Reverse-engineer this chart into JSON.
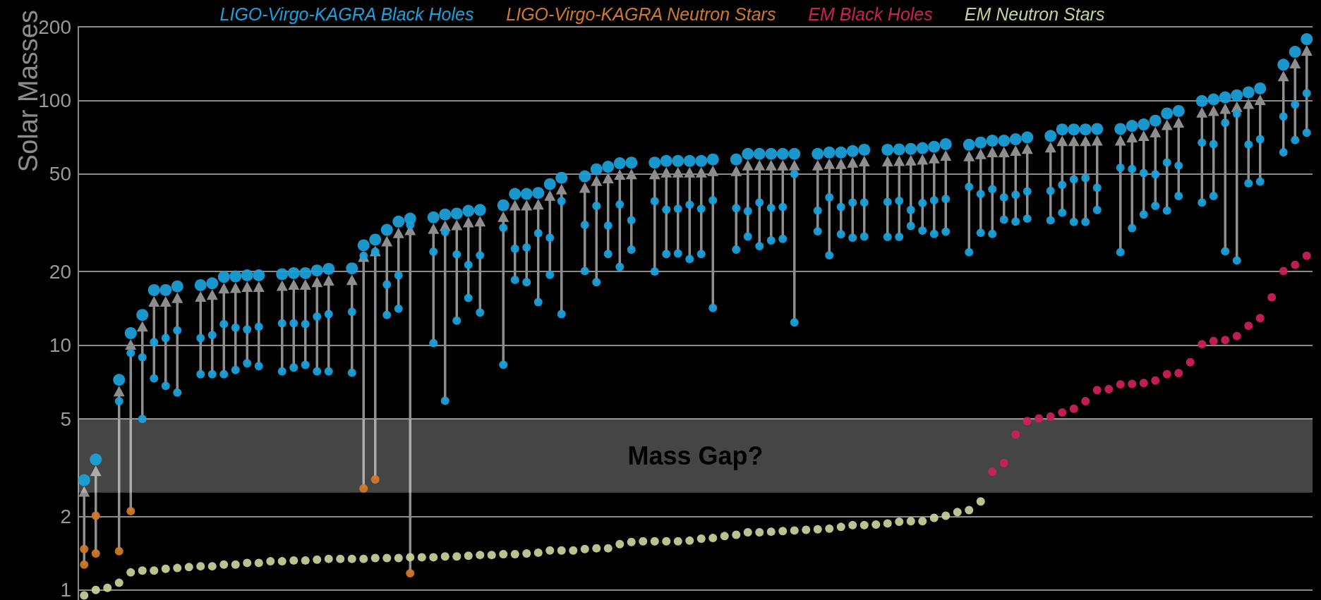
{
  "chart_data": {
    "type": "scatter",
    "ylabel": "Solar Masses",
    "log": "y",
    "ylim": [
      0.91,
      200
    ],
    "yticks": [
      1,
      2,
      5,
      10,
      20,
      50,
      100,
      200
    ],
    "grid": "y",
    "legend": "top",
    "tick_labels": "y",
    "marker": "circle",
    "categories": [
      null,
      null,
      null,
      null,
      null,
      null,
      null,
      null,
      null,
      null,
      null,
      null,
      null,
      null,
      null,
      null,
      null,
      null,
      null,
      null,
      null,
      null,
      null,
      null,
      null,
      null,
      null,
      null,
      null,
      null,
      null,
      null,
      null,
      null,
      null,
      null,
      null,
      null,
      null,
      null,
      null,
      null,
      null,
      null,
      null,
      null,
      null,
      null,
      null,
      null,
      null,
      null,
      null,
      null,
      null,
      null,
      null,
      null,
      null,
      null,
      null,
      null,
      null,
      null,
      null,
      null,
      null,
      null,
      null,
      null,
      null,
      null,
      null,
      null,
      null,
      null,
      null,
      null,
      null,
      null,
      null,
      null,
      null,
      null,
      null,
      null,
      null,
      null,
      null,
      null,
      null,
      null,
      null,
      null,
      null,
      null,
      null,
      null,
      null,
      null,
      null,
      null,
      null,
      null,
      null,
      null
    ],
    "bands": [
      {
        "axis": "y",
        "from": 2.5,
        "to": 5,
        "label": "Mass Gap?"
      }
    ],
    "series": [
      {
        "name": "LIGO-Virgo-KAGRA Black Holes",
        "color": "#1ba1db",
        "values": [
          2.81,
          3.41,
          null,
          7.22,
          11.2,
          13.3,
          16.8,
          16.8,
          17.4,
          null,
          17.6,
          17.9,
          19.0,
          19.1,
          19.3,
          19.3,
          null,
          19.5,
          19.7,
          19.7,
          20.2,
          20.5,
          null,
          20.6,
          25.6,
          27.0,
          29.6,
          32.0,
          32.9,
          null,
          33.3,
          34.2,
          34.5,
          35.4,
          35.7,
          null,
          37.3,
          41.5,
          41.5,
          41.9,
          45.5,
          48.3,
          null,
          49.0,
          52.3,
          53.6,
          55.4,
          55.7,
          null,
          55.7,
          56.6,
          56.6,
          56.6,
          56.6,
          57.4,
          null,
          57.4,
          60.5,
          60.5,
          60.5,
          60.5,
          60.5,
          null,
          60.5,
          61.3,
          61.3,
          62.1,
          62.9,
          null,
          62.9,
          63.1,
          63.4,
          63.9,
          64.7,
          66.3,
          null,
          65.9,
          67.3,
          68.5,
          68.5,
          69.4,
          70.7,
          null,
          71.6,
          76.1,
          76.1,
          76.1,
          76.5,
          null,
          76.5,
          78.7,
          79.8,
          82.7,
          88.5,
          90.6,
          null,
          99.5,
          101,
          103,
          105,
          108,
          112,
          null,
          140,
          158,
          178
        ]
      },
      {
        "color": "#1ba1db",
        "values": [
          null,
          null,
          null,
          5.91,
          9.3,
          8.92,
          10.3,
          10.7,
          11.5,
          null,
          10.7,
          11.0,
          12.2,
          11.8,
          11.6,
          11.9,
          null,
          12.3,
          12.3,
          12.2,
          13.1,
          13.4,
          null,
          13.7,
          23.2,
          24.1,
          17.7,
          19.3,
          31.0,
          null,
          24.1,
          29.0,
          23.5,
          21.3,
          23.3,
          null,
          30.2,
          24.8,
          25.1,
          28.7,
          27.5,
          38.8,
          null,
          31.0,
          37.1,
          30.8,
          37.6,
          32.4,
          null,
          38.8,
          35.8,
          36.1,
          37.5,
          36.1,
          39.1,
          null,
          36.3,
          35.3,
          38.3,
          36.4,
          36.7,
          50.1,
          null,
          35.5,
          40.2,
          36.7,
          38.3,
          38.3,
          null,
          38.5,
          38.9,
          35.7,
          38.1,
          39.1,
          39.6,
          null,
          44.4,
          41.5,
          43.4,
          40.2,
          41.2,
          42.5,
          null,
          42.7,
          45.2,
          47.6,
          48.2,
          44.0,
          null,
          53.1,
          52.5,
          50.5,
          49.9,
          55.8,
          54.2,
          null,
          67.3,
          66.3,
          81.0,
          88.3,
          66.1,
          69.4,
          null,
          86.0,
          96.2,
          107
        ]
      },
      {
        "color": "#1ba1db",
        "values": [
          null,
          null,
          null,
          null,
          null,
          5.0,
          7.32,
          6.82,
          6.41,
          null,
          7.61,
          7.61,
          7.61,
          7.92,
          8.44,
          8.22,
          null,
          7.82,
          8.11,
          8.31,
          7.82,
          7.82,
          null,
          7.72,
          null,
          null,
          13.3,
          14.1,
          null,
          null,
          10.2,
          5.93,
          12.6,
          15.6,
          13.6,
          null,
          8.32,
          18.5,
          18.1,
          15.0,
          19.4,
          13.4,
          null,
          20.1,
          18.1,
          23.6,
          20.9,
          24.6,
          null,
          20.0,
          23.6,
          23.7,
          22.5,
          23.6,
          14.2,
          null,
          24.6,
          27.8,
          25.4,
          26.8,
          27.2,
          12.4,
          null,
          29.2,
          23.3,
          28.4,
          27.5,
          27.8,
          null,
          27.7,
          27.7,
          30.7,
          29.4,
          28.5,
          29.1,
          null,
          24.0,
          28.8,
          28.5,
          32.6,
          32.0,
          32.9,
          null,
          32.4,
          34.8,
          31.9,
          31.9,
          35.7,
          null,
          24.0,
          30.1,
          34.2,
          37.1,
          35.5,
          40.7,
          null,
          38.3,
          40.7,
          24.2,
          22.2,
          45.9,
          46.6,
          null,
          61.4,
          68.9,
          73.8
        ]
      },
      {
        "name": "LIGO-Virgo-KAGRA Neutron Stars",
        "color": "#d27a2a",
        "values": [
          1.27,
          1.41,
          null,
          1.44,
          2.1,
          null,
          null,
          null,
          null,
          null,
          null,
          null,
          null,
          null,
          null,
          null,
          null,
          null,
          null,
          null,
          null,
          null,
          null,
          null,
          2.6,
          2.83,
          null,
          null,
          1.17,
          null,
          null,
          null,
          null,
          null,
          null,
          null,
          null,
          null,
          null,
          null,
          null,
          null,
          null,
          null,
          null,
          null,
          null,
          null,
          null,
          null,
          null,
          null,
          null,
          null,
          null,
          null,
          null,
          null,
          null,
          null,
          null,
          null,
          null,
          null,
          null,
          null,
          null,
          null,
          null,
          null,
          null,
          null,
          null,
          null,
          null,
          null,
          null,
          null,
          null,
          null,
          null,
          null,
          null,
          null,
          null,
          null,
          null,
          null,
          null,
          null,
          null,
          null,
          null,
          null,
          null,
          null,
          null,
          null,
          null,
          null,
          null,
          null,
          null,
          null,
          null,
          null
        ]
      },
      {
        "color": "#d27a2a",
        "values": [
          1.47,
          2.01,
          null,
          null,
          null,
          null,
          null,
          null,
          null,
          null,
          null,
          null,
          null,
          null,
          null,
          null,
          null,
          null,
          null,
          null,
          null,
          null,
          null,
          null,
          null,
          null,
          null,
          null,
          null,
          null,
          null,
          null,
          null,
          null,
          null,
          null,
          null,
          null,
          null,
          null,
          null,
          null,
          null,
          null,
          null,
          null,
          null,
          null,
          null,
          null,
          null,
          null,
          null,
          null,
          null,
          null,
          null,
          null,
          null,
          null,
          null,
          null,
          null,
          null,
          null,
          null,
          null,
          null,
          null,
          null,
          null,
          null,
          null,
          null,
          null,
          null,
          null,
          null,
          null,
          null,
          null,
          null,
          null,
          null,
          null,
          null,
          null,
          null,
          null,
          null,
          null,
          null,
          null,
          null,
          null,
          null,
          null,
          null,
          null,
          null,
          null,
          null,
          null,
          null,
          null,
          null
        ]
      },
      {
        "name": "EM Black Holes",
        "color": "#cc1f5c",
        "values": [
          null,
          null,
          null,
          null,
          null,
          null,
          null,
          null,
          null,
          null,
          null,
          null,
          null,
          null,
          null,
          null,
          null,
          null,
          null,
          null,
          null,
          null,
          null,
          null,
          null,
          null,
          null,
          null,
          null,
          null,
          null,
          null,
          null,
          null,
          null,
          null,
          null,
          null,
          null,
          null,
          null,
          null,
          null,
          null,
          null,
          null,
          null,
          null,
          null,
          null,
          null,
          null,
          null,
          null,
          null,
          null,
          null,
          null,
          null,
          null,
          null,
          null,
          null,
          null,
          null,
          null,
          null,
          null,
          null,
          null,
          null,
          null,
          null,
          null,
          null,
          null,
          null,
          null,
          3.04,
          3.3,
          4.32,
          4.9,
          5.02,
          5.11,
          5.31,
          5.5,
          5.91,
          6.56,
          6.61,
          6.92,
          6.95,
          7.01,
          7.17,
          7.61,
          7.69,
          8.52,
          10.1,
          10.4,
          10.5,
          10.9,
          12.0,
          12.9,
          15.7,
          20.1,
          21.3,
          23.2
        ]
      },
      {
        "name": "EM Neutron Stars",
        "color": "#c6d29b",
        "values": [
          0.95,
          1.0,
          1.02,
          1.07,
          1.18,
          1.2,
          1.2,
          1.22,
          1.23,
          1.24,
          1.25,
          1.25,
          1.27,
          1.27,
          1.29,
          1.29,
          1.31,
          1.31,
          1.32,
          1.32,
          1.33,
          1.34,
          1.34,
          1.34,
          1.34,
          1.35,
          1.35,
          1.35,
          1.36,
          1.36,
          1.36,
          1.37,
          1.37,
          1.38,
          1.39,
          1.39,
          1.4,
          1.4,
          1.41,
          1.42,
          1.45,
          1.45,
          1.45,
          1.47,
          1.48,
          1.48,
          1.54,
          1.57,
          1.58,
          1.58,
          1.58,
          1.58,
          1.59,
          1.62,
          1.63,
          1.66,
          1.68,
          1.72,
          1.72,
          1.73,
          1.74,
          1.75,
          1.76,
          1.77,
          1.78,
          1.81,
          1.84,
          1.84,
          1.85,
          1.87,
          1.9,
          1.91,
          1.91,
          1.97,
          2.01,
          2.08,
          2.12,
          2.3,
          null,
          null,
          null,
          null,
          null,
          null,
          null,
          null,
          null,
          null,
          null,
          null,
          null,
          null,
          null,
          null,
          null,
          null,
          null,
          null,
          null,
          null,
          null,
          null,
          null,
          null,
          null,
          null
        ]
      }
    ]
  }
}
